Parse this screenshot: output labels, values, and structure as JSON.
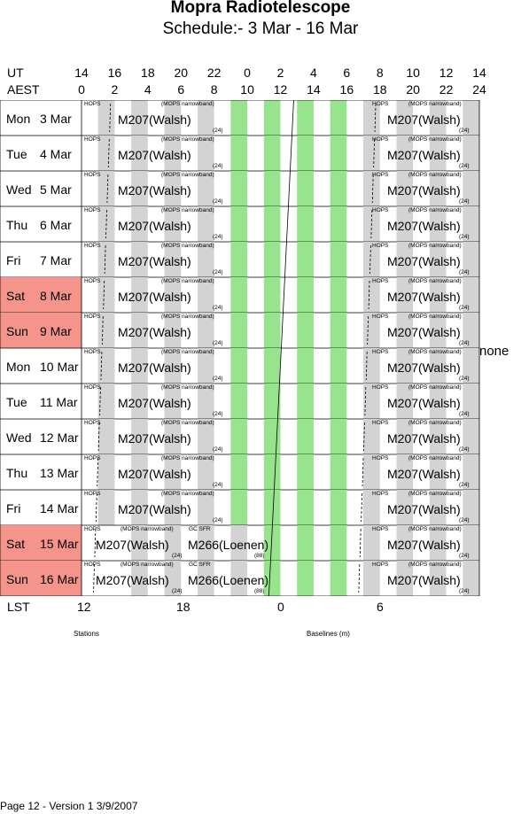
{
  "title": "Mopra Radiotelescope",
  "subtitle": "Schedule:- 3  Mar - 16 Mar",
  "header": {
    "ut_label": "UT",
    "aest_label": "AEST",
    "ut_hours": [
      "14",
      "16",
      "18",
      "20",
      "22",
      "0",
      "2",
      "4",
      "6",
      "8",
      "10",
      "12",
      "14"
    ],
    "aest_hours": [
      "0",
      "2",
      "4",
      "6",
      "8",
      "10",
      "12",
      "14",
      "16",
      "18",
      "20",
      "22",
      "24"
    ]
  },
  "colors": {
    "weekend": "#f4948a",
    "stripe_green": "#98e48e",
    "stripe_gray": "#d3d3d3"
  },
  "days": [
    {
      "day": "Mon",
      "date": "3  Mar",
      "weekend": false,
      "obs1": "M207(Walsh)",
      "hops": "HOPS",
      "mops": "(MOPS narrowband)",
      "n1": "(24)",
      "obs2": "M207(Walsh)",
      "hops2": "HOPS",
      "mops2": "(MOPS narrowband)",
      "n2": "(24)"
    },
    {
      "day": "Tue",
      "date": "4  Mar",
      "weekend": false,
      "obs1": "M207(Walsh)",
      "hops": "HOPS",
      "mops": "(MOPS narrowband)",
      "n1": "(24)",
      "obs2": "M207(Walsh)",
      "hops2": "HOPS",
      "mops2": "(MOPS narrowband)",
      "n2": "(24)"
    },
    {
      "day": "Wed",
      "date": "5  Mar",
      "weekend": false,
      "obs1": "M207(Walsh)",
      "hops": "HOPS",
      "mops": "(MOPS narrowband)",
      "n1": "(24)",
      "obs2": "M207(Walsh)",
      "hops2": "HOPS",
      "mops2": "(MOPS narrowband)",
      "n2": "(24)"
    },
    {
      "day": "Thu",
      "date": "6  Mar",
      "weekend": false,
      "obs1": "M207(Walsh)",
      "hops": "HOPS",
      "mops": "(MOPS narrowband)",
      "n1": "(24)",
      "obs2": "M207(Walsh)",
      "hops2": "HOPS",
      "mops2": "(MOPS narrowband)",
      "n2": "(24)"
    },
    {
      "day": "Fri",
      "date": "7  Mar",
      "weekend": false,
      "obs1": "M207(Walsh)",
      "hops": "HOPS",
      "mops": "(MOPS narrowband)",
      "n1": "(24)",
      "obs2": "M207(Walsh)",
      "hops2": "HOPS",
      "mops2": "(MOPS narrowband)",
      "n2": "(24)"
    },
    {
      "day": "Sat",
      "date": "8  Mar",
      "weekend": true,
      "obs1": "M207(Walsh)",
      "hops": "HOPS",
      "mops": "(MOPS narrowband)",
      "n1": "(24)",
      "obs2": "M207(Walsh)",
      "hops2": "HOPS",
      "mops2": "(MOPS narrowband)",
      "n2": "(24)"
    },
    {
      "day": "Sun",
      "date": "9  Mar",
      "weekend": true,
      "obs1": "M207(Walsh)",
      "hops": "HOPS",
      "mops": "(MOPS narrowband)",
      "n1": "(24)",
      "obs2": "M207(Walsh)",
      "hops2": "HOPS",
      "mops2": "(MOPS narrowband)",
      "n2": "(24)"
    },
    {
      "day": "Mon",
      "date": "10 Mar",
      "weekend": false,
      "obs1": "M207(Walsh)",
      "hops": "HOPS",
      "mops": "(MOPS narrowband)",
      "n1": "(24)",
      "obs2": "M207(Walsh)",
      "hops2": "HOPS",
      "mops2": "(MOPS narrowband)",
      "n2": "(24)"
    },
    {
      "day": "Tue",
      "date": "11 Mar",
      "weekend": false,
      "obs1": "M207(Walsh)",
      "hops": "HOPS",
      "mops": "(MOPS narrowband)",
      "n1": "(24)",
      "obs2": "M207(Walsh)",
      "hops2": "HOPS",
      "mops2": "(MOPS narrowband)",
      "n2": "(24)"
    },
    {
      "day": "Wed",
      "date": "12 Mar",
      "weekend": false,
      "obs1": "M207(Walsh)",
      "hops": "HOPS",
      "mops": "(MOPS narrowband)",
      "n1": "(24)",
      "obs2": "M207(Walsh)",
      "hops2": "HOPS",
      "mops2": "(MOPS narrowband)",
      "n2": "(24)"
    },
    {
      "day": "Thu",
      "date": "13 Mar",
      "weekend": false,
      "obs1": "M207(Walsh)",
      "hops": "HOPS",
      "mops": "(MOPS narrowband)",
      "n1": "(24)",
      "obs2": "M207(Walsh)",
      "hops2": "HOPS",
      "mops2": "(MOPS narrowband)",
      "n2": "(24)"
    },
    {
      "day": "Fri",
      "date": "14 Mar",
      "weekend": false,
      "obs1": "M207(Walsh)",
      "hops": "HOPS",
      "mops": "(MOPS narrowband)",
      "n1": "(24)",
      "obs2": "M207(Walsh)",
      "hops2": "HOPS",
      "mops2": "(MOPS narrowband)",
      "n2": "(24)"
    },
    {
      "day": "Sat",
      "date": "15 Mar",
      "weekend": true,
      "obs1": "M207(Walsh)",
      "hops": "HOPS",
      "mops": "(MOPS narrowband)",
      "n1": "(24)",
      "gc": "GC SFR",
      "obs3": "M266(Loenen)",
      "n3": "(88)",
      "obs2": "M207(Walsh)",
      "hops2": "HOPS",
      "mops2": "(MOPS narrowband)",
      "n2": "(24)"
    },
    {
      "day": "Sun",
      "date": "16 Mar",
      "weekend": true,
      "obs1": "M207(Walsh)",
      "hops": "HOPS",
      "mops": "(MOPS narrowband)",
      "n1": "(24)",
      "gc": "GC SFR",
      "obs3": "M266(Loenen)",
      "n3": "(88)",
      "obs2": "M207(Walsh)",
      "hops2": "HOPS",
      "mops2": "(MOPS narrowband)",
      "n2": "(24)"
    }
  ],
  "none_label": "none",
  "lst": {
    "label": "LST",
    "ticks": [
      "12",
      "18",
      "0",
      "6"
    ]
  },
  "stations_label": "Stations",
  "baselines_label": "Baselines (m)",
  "footer": "Page 12 - Version 1  3/9/2007"
}
